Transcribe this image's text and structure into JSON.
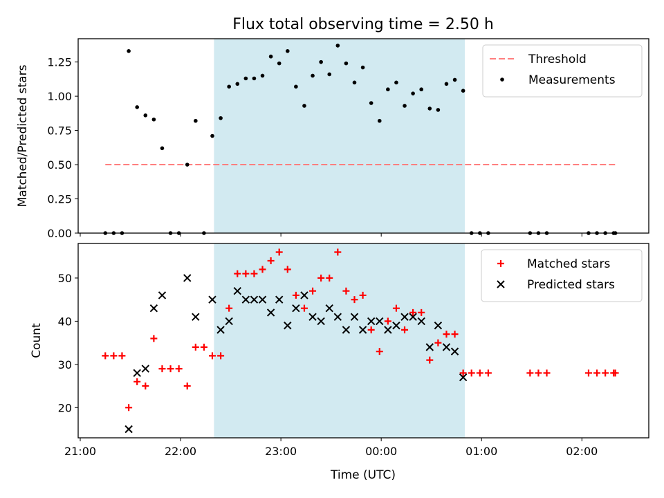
{
  "title": "Flux total observing time = 2.50 h",
  "xlabel": "Time (UTC)",
  "x_ticks": [
    "21:00",
    "22:00",
    "23:00",
    "00:00",
    "01:00",
    "02:00"
  ],
  "colors": {
    "threshold": "#ff7f7f",
    "window": "#add8e6",
    "measurements": "#000000",
    "matched": "#ff0000",
    "predicted": "#000000"
  },
  "chart_data": [
    {
      "type": "scatter",
      "ylabel": "Matched/Predicted stars",
      "ylim": [
        0,
        1.42
      ],
      "y_ticks": [
        "0.00",
        "0.25",
        "0.50",
        "0.75",
        "1.00",
        "1.25"
      ],
      "xlim": [
        "21:00",
        "02:40"
      ],
      "legend_placement": "top-right",
      "observing_window": {
        "start": "22:20",
        "end": "00:50"
      },
      "threshold": {
        "name": "Threshold",
        "value": 0.5,
        "x_range": [
          "21:15",
          "02:20"
        ]
      },
      "series": [
        {
          "name": "Measurements",
          "marker": "dot",
          "x": [
            "21:15",
            "21:20",
            "21:25",
            "21:29",
            "21:34",
            "21:39",
            "21:44",
            "21:49",
            "21:54",
            "21:59",
            "22:04",
            "22:09",
            "22:14",
            "22:19",
            "22:24",
            "22:29",
            "22:34",
            "22:39",
            "22:44",
            "22:49",
            "22:54",
            "22:59",
            "23:04",
            "23:09",
            "23:14",
            "23:19",
            "23:24",
            "23:29",
            "23:34",
            "23:39",
            "23:44",
            "23:49",
            "23:54",
            "23:59",
            "00:04",
            "00:09",
            "00:14",
            "00:19",
            "00:24",
            "00:29",
            "00:34",
            "00:39",
            "00:44",
            "00:49",
            "00:54",
            "00:59",
            "01:04",
            "01:29",
            "01:34",
            "01:39",
            "02:04",
            "02:09",
            "02:14",
            "02:19",
            "02:20"
          ],
          "y": [
            0,
            0,
            0,
            1.33,
            0.92,
            0.86,
            0.83,
            0.62,
            0,
            0,
            0.5,
            0.82,
            0,
            0.71,
            0.84,
            1.07,
            1.09,
            1.13,
            1.13,
            1.15,
            1.29,
            1.24,
            1.33,
            1.07,
            0.93,
            1.15,
            1.25,
            1.16,
            1.37,
            1.24,
            1.1,
            1.21,
            0.95,
            0.82,
            1.05,
            1.1,
            0.93,
            1.02,
            1.05,
            0.91,
            0.9,
            1.09,
            1.12,
            1.04,
            0,
            0,
            0,
            0,
            0,
            0,
            0,
            0,
            0,
            0,
            0
          ]
        }
      ]
    },
    {
      "type": "scatter",
      "ylabel": "Count",
      "ylim": [
        13,
        58
      ],
      "y_ticks": [
        "20",
        "30",
        "40",
        "50"
      ],
      "xlim": [
        "21:00",
        "02:40"
      ],
      "legend_placement": "top-right",
      "observing_window": {
        "start": "22:20",
        "end": "00:50"
      },
      "series": [
        {
          "name": "Matched stars",
          "marker": "plus",
          "x": [
            "21:15",
            "21:20",
            "21:25",
            "21:29",
            "21:34",
            "21:39",
            "21:44",
            "21:49",
            "21:54",
            "21:59",
            "22:04",
            "22:09",
            "22:14",
            "22:19",
            "22:24",
            "22:29",
            "22:34",
            "22:39",
            "22:44",
            "22:49",
            "22:54",
            "22:59",
            "23:04",
            "23:09",
            "23:14",
            "23:19",
            "23:24",
            "23:29",
            "23:34",
            "23:39",
            "23:44",
            "23:49",
            "23:54",
            "23:59",
            "00:04",
            "00:09",
            "00:14",
            "00:19",
            "00:24",
            "00:29",
            "00:34",
            "00:39",
            "00:44",
            "00:49",
            "00:54",
            "00:59",
            "01:04",
            "01:29",
            "01:34",
            "01:39",
            "02:04",
            "02:09",
            "02:14",
            "02:19",
            "02:20"
          ],
          "y": [
            32,
            32,
            32,
            20,
            26,
            25,
            36,
            29,
            29,
            29,
            25,
            34,
            34,
            32,
            32,
            43,
            51,
            51,
            51,
            52,
            54,
            56,
            52,
            46,
            43,
            47,
            50,
            50,
            56,
            47,
            45,
            46,
            38,
            33,
            40,
            43,
            38,
            42,
            42,
            31,
            35,
            37,
            37,
            28,
            28,
            28,
            28,
            28,
            28,
            28,
            28,
            28,
            28,
            28,
            28
          ]
        },
        {
          "name": "Predicted stars",
          "marker": "x",
          "x": [
            "21:29",
            "21:34",
            "21:39",
            "21:44",
            "21:49",
            "22:04",
            "22:09",
            "22:19",
            "22:24",
            "22:29",
            "22:34",
            "22:39",
            "22:44",
            "22:49",
            "22:54",
            "22:59",
            "23:04",
            "23:09",
            "23:14",
            "23:19",
            "23:24",
            "23:29",
            "23:34",
            "23:39",
            "23:44",
            "23:49",
            "23:54",
            "23:59",
            "00:04",
            "00:09",
            "00:14",
            "00:19",
            "00:24",
            "00:29",
            "00:34",
            "00:39",
            "00:44",
            "00:49"
          ],
          "y": [
            15,
            28,
            29,
            43,
            46,
            50,
            41,
            45,
            38,
            40,
            47,
            45,
            45,
            45,
            42,
            45,
            39,
            43,
            46,
            41,
            40,
            43,
            41,
            38,
            41,
            38,
            40,
            40,
            38,
            39,
            41,
            41,
            40,
            34,
            39,
            34,
            33,
            27
          ]
        }
      ]
    }
  ]
}
